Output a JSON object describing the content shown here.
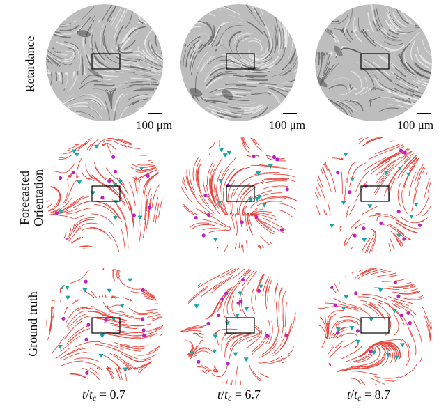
{
  "rows": [
    {
      "label_lines": [
        "Retardance"
      ],
      "kind": "retardance"
    },
    {
      "label_lines": [
        "Forecasted",
        "Orientation"
      ],
      "kind": "orientation"
    },
    {
      "label_lines": [
        "Ground truth"
      ],
      "kind": "orientation"
    }
  ],
  "scale_bar_label": "100 μm",
  "columns": [
    {
      "t_over_tc": "0.7",
      "seed": 3
    },
    {
      "t_over_tc": "6.7",
      "seed": 11
    },
    {
      "t_over_tc": "8.7",
      "seed": 23
    }
  ],
  "colors": {
    "streamline": "#e8453c",
    "plus_defect": "#c020c0",
    "minus_defect": "#1aa6a0",
    "box": "#000000"
  }
}
